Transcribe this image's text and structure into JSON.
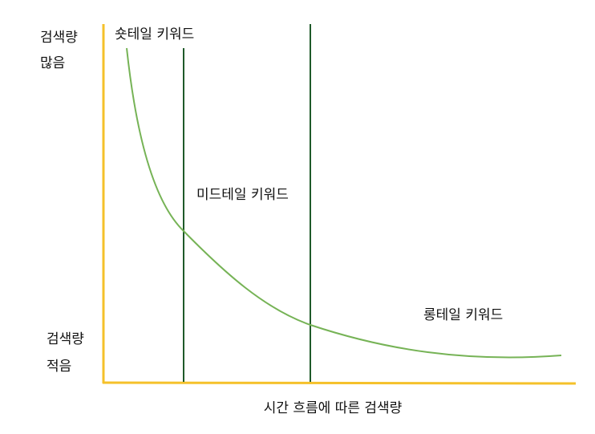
{
  "y_axis": {
    "top_label": [
      "검색량",
      "많음"
    ],
    "bottom_label": [
      "검색량",
      "적음"
    ]
  },
  "regions": [
    "숏테일 키워드",
    "미드테일 키워드",
    "롱테일 키워드"
  ],
  "x_axis": {
    "label": "시간 흐름에 따른 검색량"
  }
}
